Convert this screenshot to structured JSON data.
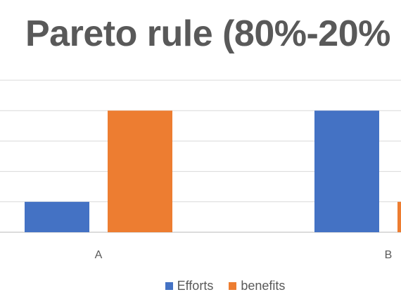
{
  "chart_data": {
    "type": "bar",
    "title": "Pareto rule (80%-20%",
    "categories": [
      "A",
      "B"
    ],
    "series": [
      {
        "name": "Efforts",
        "values": [
          20,
          80
        ],
        "color": "#4472C4"
      },
      {
        "name": "benefits",
        "values": [
          80,
          20
        ],
        "color": "#ED7D31"
      }
    ],
    "ylim": [
      0,
      100
    ],
    "grid": true,
    "legend": "bottom"
  }
}
